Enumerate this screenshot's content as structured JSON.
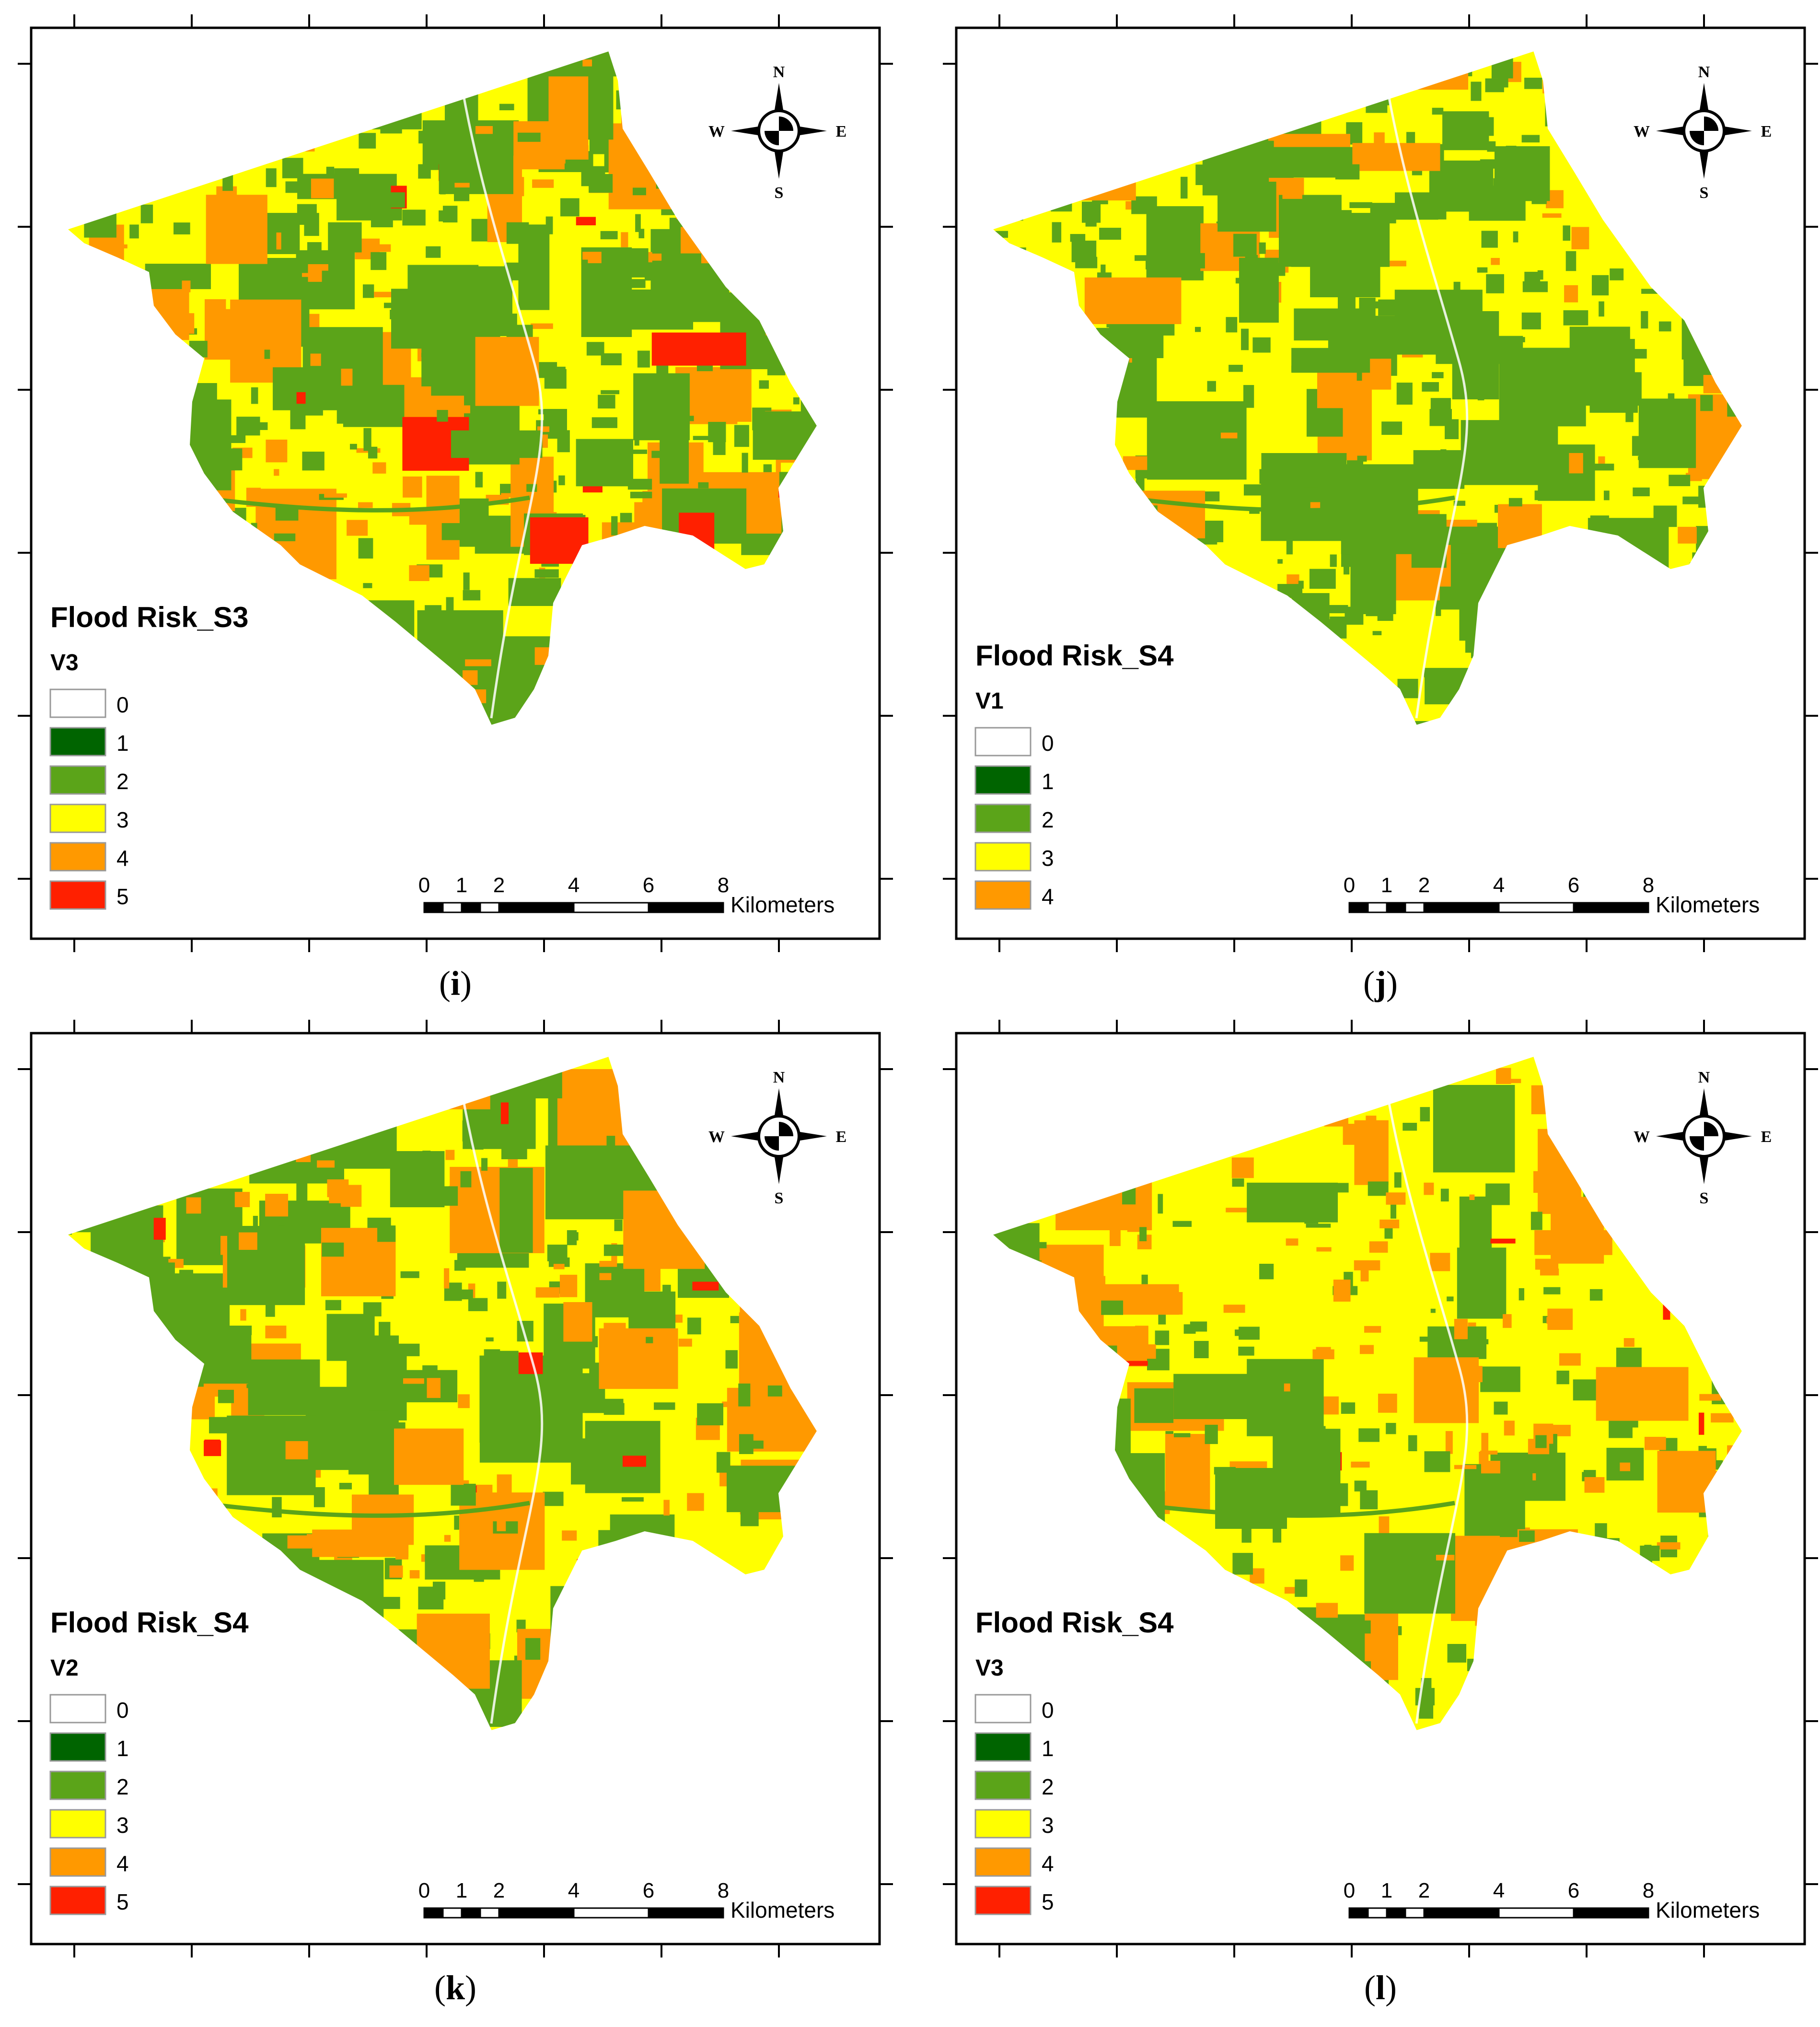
{
  "panels": [
    {
      "id": "i",
      "caption": "i",
      "title": "Flood Risk_S3",
      "variant": "V3",
      "legend": [
        {
          "label": "0",
          "color": "#ffffff"
        },
        {
          "label": "1",
          "color": "#006400"
        },
        {
          "label": "2",
          "color": "#5ba419"
        },
        {
          "label": "3",
          "color": "#ffff00"
        },
        {
          "label": "4",
          "color": "#ff9900"
        },
        {
          "label": "5",
          "color": "#ff2000"
        }
      ],
      "colors": [
        "#ffff00",
        "#5ba419",
        "#ff9900",
        "#ff2000"
      ],
      "weights": [
        52,
        33,
        13,
        2
      ]
    },
    {
      "id": "j",
      "caption": "j",
      "title": "Flood Risk_S4",
      "variant": "V1",
      "legend": [
        {
          "label": "0",
          "color": "#ffffff"
        },
        {
          "label": "1",
          "color": "#006400"
        },
        {
          "label": "2",
          "color": "#5ba419"
        },
        {
          "label": "3",
          "color": "#ffff00"
        },
        {
          "label": "4",
          "color": "#ff9900"
        }
      ],
      "colors": [
        "#ffff00",
        "#5ba419",
        "#ff9900"
      ],
      "weights": [
        58,
        36,
        6
      ]
    },
    {
      "id": "k",
      "caption": "k",
      "title": "Flood Risk_S4",
      "variant": "V2",
      "legend": [
        {
          "label": "0",
          "color": "#ffffff"
        },
        {
          "label": "1",
          "color": "#006400"
        },
        {
          "label": "2",
          "color": "#5ba419"
        },
        {
          "label": "3",
          "color": "#ffff00"
        },
        {
          "label": "4",
          "color": "#ff9900"
        },
        {
          "label": "5",
          "color": "#ff2000"
        }
      ],
      "colors": [
        "#ffff00",
        "#5ba419",
        "#ff9900",
        "#ff2000"
      ],
      "weights": [
        64,
        24,
        11,
        1
      ]
    },
    {
      "id": "l",
      "caption": "l",
      "title": "Flood Risk_S4",
      "variant": "V3",
      "legend": [
        {
          "label": "0",
          "color": "#ffffff"
        },
        {
          "label": "1",
          "color": "#006400"
        },
        {
          "label": "2",
          "color": "#5ba419"
        },
        {
          "label": "3",
          "color": "#ffff00"
        },
        {
          "label": "4",
          "color": "#ff9900"
        },
        {
          "label": "5",
          "color": "#ff2000"
        }
      ],
      "colors": [
        "#ffff00",
        "#5ba419",
        "#ff9900",
        "#ff2000"
      ],
      "weights": [
        68,
        18,
        13,
        1
      ]
    }
  ],
  "scale_bar": {
    "ticks": [
      "0",
      "1",
      "2",
      "4",
      "6",
      "8"
    ],
    "unit": "Kilometers"
  },
  "compass": {
    "n": "N",
    "s": "S",
    "e": "E",
    "w": "W"
  },
  "watershed_outline": "shared study-area boundary"
}
